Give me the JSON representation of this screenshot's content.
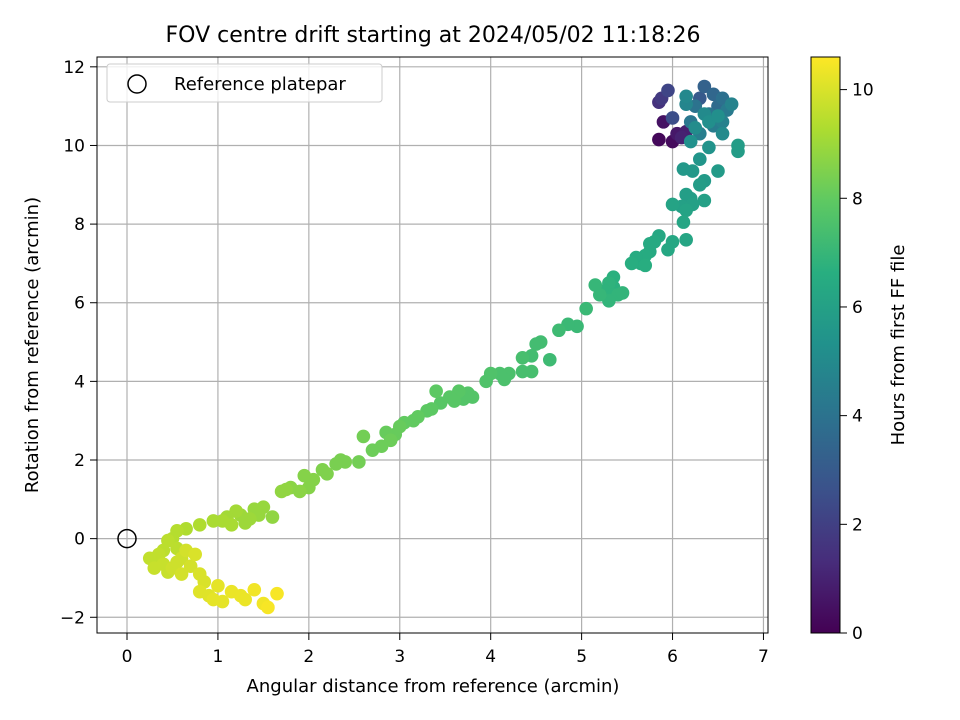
{
  "chart_data": {
    "type": "scatter",
    "title": "FOV centre drift starting at 2024/05/02 11:18:26",
    "xlabel": "Angular distance from reference (arcmin)",
    "ylabel": "Rotation from reference (arcmin)",
    "xlim": [
      -0.33,
      7.05
    ],
    "ylim": [
      -2.4,
      12.25
    ],
    "xticks": [
      "0",
      "1",
      "2",
      "3",
      "4",
      "5",
      "6",
      "7"
    ],
    "yticks": [
      "−2",
      "0",
      "2",
      "4",
      "6",
      "8",
      "10",
      "12"
    ],
    "grid": true,
    "legend": {
      "placement": "upper-left",
      "label": "Reference platepar"
    },
    "reference_point": {
      "x": 0,
      "y": 0
    },
    "colorbar": {
      "label": "Hours from first FF file",
      "cmap": "viridis",
      "range": [
        0,
        10.6
      ],
      "ticks": [
        "0",
        "2",
        "4",
        "6",
        "8",
        "10"
      ]
    },
    "series": [
      {
        "color_by": "hours",
        "points": [
          [
            5.85,
            10.15,
            0.2
          ],
          [
            6.0,
            10.1,
            0.3
          ],
          [
            5.9,
            10.6,
            0.5
          ],
          [
            6.05,
            10.3,
            0.7
          ],
          [
            6.15,
            10.35,
            0.9
          ],
          [
            6.1,
            10.2,
            1.0
          ],
          [
            5.85,
            11.1,
            1.5
          ],
          [
            5.88,
            11.2,
            1.8
          ],
          [
            5.95,
            11.4,
            2.2
          ],
          [
            6.0,
            10.7,
            2.5
          ],
          [
            6.3,
            11.2,
            3.0
          ],
          [
            6.35,
            11.5,
            3.3
          ],
          [
            6.45,
            11.3,
            3.5
          ],
          [
            6.5,
            11.0,
            3.7
          ],
          [
            6.55,
            11.2,
            3.9
          ],
          [
            6.25,
            11.0,
            4.0
          ],
          [
            6.4,
            10.8,
            4.1
          ],
          [
            6.2,
            10.6,
            4.2
          ],
          [
            6.6,
            10.9,
            4.3
          ],
          [
            6.45,
            10.5,
            4.4
          ],
          [
            6.3,
            10.3,
            4.5
          ],
          [
            6.55,
            10.6,
            4.6
          ],
          [
            6.65,
            11.05,
            4.7
          ],
          [
            6.15,
            11.05,
            4.8
          ],
          [
            6.15,
            11.25,
            4.9
          ],
          [
            6.55,
            10.3,
            5.0
          ],
          [
            6.35,
            10.8,
            5.0
          ],
          [
            6.25,
            10.45,
            5.1
          ],
          [
            6.4,
            10.6,
            5.2
          ],
          [
            6.5,
            10.75,
            5.2
          ],
          [
            6.2,
            10.1,
            5.3
          ],
          [
            6.4,
            9.95,
            5.4
          ],
          [
            6.3,
            9.65,
            5.5
          ],
          [
            6.12,
            9.4,
            5.6
          ],
          [
            6.22,
            9.35,
            5.6
          ],
          [
            6.35,
            9.1,
            5.7
          ],
          [
            6.5,
            9.35,
            5.7
          ],
          [
            6.72,
            10.0,
            5.8
          ],
          [
            6.72,
            9.85,
            5.8
          ],
          [
            6.3,
            9.0,
            5.8
          ],
          [
            6.15,
            8.75,
            5.9
          ],
          [
            6.2,
            8.65,
            5.9
          ],
          [
            6.35,
            8.6,
            6.0
          ],
          [
            6.22,
            8.5,
            6.0
          ],
          [
            6.1,
            8.45,
            6.0
          ],
          [
            6.0,
            8.5,
            6.1
          ],
          [
            6.15,
            8.35,
            6.1
          ],
          [
            6.12,
            8.05,
            6.2
          ],
          [
            6.15,
            7.6,
            6.2
          ],
          [
            6.0,
            7.55,
            6.3
          ],
          [
            5.95,
            7.35,
            6.3
          ],
          [
            5.85,
            7.7,
            6.3
          ],
          [
            5.8,
            7.55,
            6.4
          ],
          [
            5.75,
            7.5,
            6.4
          ],
          [
            5.75,
            7.3,
            6.4
          ],
          [
            5.7,
            7.2,
            6.5
          ],
          [
            5.65,
            7.0,
            6.5
          ],
          [
            5.6,
            7.15,
            6.5
          ],
          [
            5.55,
            7.0,
            6.6
          ],
          [
            5.7,
            6.95,
            6.6
          ],
          [
            5.35,
            6.65,
            6.7
          ],
          [
            5.35,
            6.4,
            6.7
          ],
          [
            5.3,
            6.5,
            6.8
          ],
          [
            5.25,
            6.3,
            6.8
          ],
          [
            5.35,
            6.2,
            6.8
          ],
          [
            5.4,
            6.2,
            6.9
          ],
          [
            5.45,
            6.25,
            6.9
          ],
          [
            5.3,
            6.05,
            6.9
          ],
          [
            5.2,
            6.2,
            7.0
          ],
          [
            5.15,
            6.45,
            7.0
          ],
          [
            5.05,
            5.85,
            7.1
          ],
          [
            4.95,
            5.4,
            7.1
          ],
          [
            4.85,
            5.45,
            7.1
          ],
          [
            4.75,
            5.3,
            7.2
          ],
          [
            4.65,
            4.55,
            7.2
          ],
          [
            4.55,
            5.0,
            7.3
          ],
          [
            4.5,
            4.95,
            7.3
          ],
          [
            4.45,
            4.65,
            7.3
          ],
          [
            4.35,
            4.6,
            7.4
          ],
          [
            4.45,
            4.25,
            7.4
          ],
          [
            4.35,
            4.25,
            7.4
          ],
          [
            4.2,
            4.2,
            7.5
          ],
          [
            4.15,
            4.05,
            7.5
          ],
          [
            4.1,
            4.2,
            7.5
          ],
          [
            4.0,
            4.2,
            7.6
          ],
          [
            3.95,
            4.0,
            7.6
          ],
          [
            3.8,
            3.6,
            7.7
          ],
          [
            3.75,
            3.7,
            7.7
          ],
          [
            3.7,
            3.55,
            7.7
          ],
          [
            3.65,
            3.75,
            7.8
          ],
          [
            3.6,
            3.5,
            7.8
          ],
          [
            3.55,
            3.6,
            7.8
          ],
          [
            3.45,
            3.45,
            7.8
          ],
          [
            3.35,
            3.3,
            7.9
          ],
          [
            3.4,
            3.75,
            7.9
          ],
          [
            3.3,
            3.25,
            7.9
          ],
          [
            3.2,
            3.1,
            8.0
          ],
          [
            3.15,
            3.0,
            8.0
          ],
          [
            3.05,
            2.95,
            8.0
          ],
          [
            3.0,
            2.85,
            8.1
          ],
          [
            2.95,
            2.65,
            8.1
          ],
          [
            2.85,
            2.7,
            8.1
          ],
          [
            2.9,
            2.5,
            8.2
          ],
          [
            2.8,
            2.35,
            8.2
          ],
          [
            2.7,
            2.25,
            8.2
          ],
          [
            2.6,
            2.6,
            8.3
          ],
          [
            2.55,
            1.95,
            8.3
          ],
          [
            2.4,
            1.95,
            8.4
          ],
          [
            2.35,
            2.0,
            8.4
          ],
          [
            2.3,
            1.9,
            8.4
          ],
          [
            2.2,
            1.65,
            8.5
          ],
          [
            2.15,
            1.75,
            8.5
          ],
          [
            2.05,
            1.5,
            8.6
          ],
          [
            2.0,
            1.3,
            8.6
          ],
          [
            1.95,
            1.6,
            8.6
          ],
          [
            1.9,
            1.2,
            8.7
          ],
          [
            1.8,
            1.3,
            8.7
          ],
          [
            1.75,
            1.25,
            8.8
          ],
          [
            1.7,
            1.2,
            8.8
          ],
          [
            1.6,
            0.55,
            8.8
          ],
          [
            1.5,
            0.8,
            8.9
          ],
          [
            1.45,
            0.6,
            8.9
          ],
          [
            1.4,
            0.75,
            8.9
          ],
          [
            1.35,
            0.5,
            9.0
          ],
          [
            1.3,
            0.4,
            9.0
          ],
          [
            1.25,
            0.6,
            9.0
          ],
          [
            1.2,
            0.7,
            9.1
          ],
          [
            1.1,
            0.55,
            9.1
          ],
          [
            1.15,
            0.35,
            9.2
          ],
          [
            1.05,
            0.45,
            9.2
          ],
          [
            0.95,
            0.45,
            9.2
          ],
          [
            0.8,
            0.35,
            9.3
          ],
          [
            0.65,
            0.25,
            9.3
          ],
          [
            0.55,
            0.2,
            9.4
          ],
          [
            0.5,
            0.0,
            9.4
          ],
          [
            0.45,
            -0.05,
            9.5
          ],
          [
            0.55,
            -0.25,
            9.5
          ],
          [
            0.4,
            -0.3,
            9.5
          ],
          [
            0.35,
            -0.4,
            9.6
          ],
          [
            0.3,
            -0.55,
            9.6
          ],
          [
            0.25,
            -0.5,
            9.6
          ],
          [
            0.3,
            -0.75,
            9.7
          ],
          [
            0.4,
            -0.65,
            9.7
          ],
          [
            0.45,
            -0.85,
            9.7
          ],
          [
            0.5,
            -0.75,
            9.8
          ],
          [
            0.55,
            -0.6,
            9.8
          ],
          [
            0.6,
            -0.5,
            9.8
          ],
          [
            0.65,
            -0.3,
            9.9
          ],
          [
            0.7,
            -0.7,
            9.9
          ],
          [
            0.6,
            -0.9,
            9.9
          ],
          [
            0.75,
            -0.4,
            10.0
          ],
          [
            0.8,
            -0.9,
            10.0
          ],
          [
            0.85,
            -1.1,
            10.0
          ],
          [
            0.8,
            -1.35,
            10.1
          ],
          [
            0.9,
            -1.45,
            10.1
          ],
          [
            0.95,
            -1.55,
            10.2
          ],
          [
            1.0,
            -1.2,
            10.2
          ],
          [
            1.05,
            -1.6,
            10.2
          ],
          [
            1.15,
            -1.35,
            10.3
          ],
          [
            1.25,
            -1.45,
            10.3
          ],
          [
            1.3,
            -1.55,
            10.3
          ],
          [
            1.4,
            -1.3,
            10.4
          ],
          [
            1.5,
            -1.65,
            10.4
          ],
          [
            1.55,
            -1.75,
            10.5
          ],
          [
            1.65,
            -1.4,
            10.5
          ]
        ]
      }
    ]
  }
}
